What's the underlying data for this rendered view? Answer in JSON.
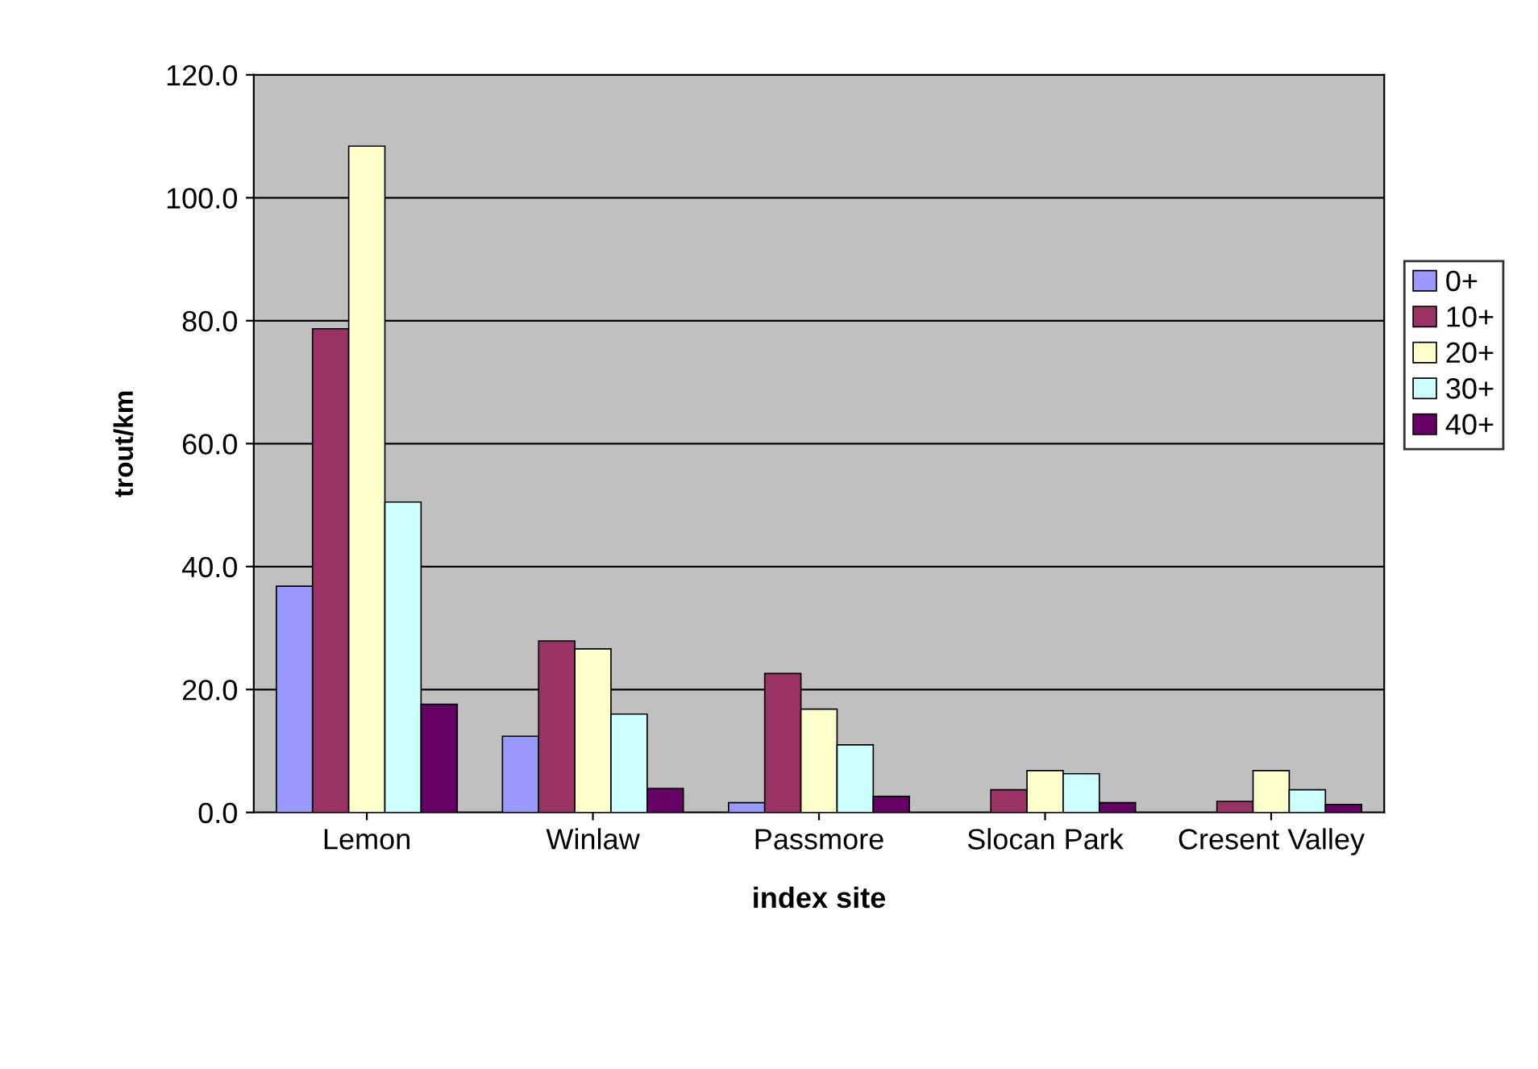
{
  "chart_data": {
    "type": "bar",
    "xlabel": "index site",
    "ylabel": "trout/km",
    "categories": [
      "Lemon",
      "Winlaw",
      "Passmore",
      "Slocan Park",
      "Cresent Valley"
    ],
    "series": [
      {
        "name": "0+",
        "color": "#9999ff",
        "values": [
          36.8,
          12.4,
          1.6,
          null,
          null
        ]
      },
      {
        "name": "10+",
        "color": "#993366",
        "values": [
          78.7,
          27.9,
          22.6,
          3.7,
          1.8
        ]
      },
      {
        "name": "20+",
        "color": "#ffffcc",
        "values": [
          108.4,
          26.6,
          16.8,
          6.8,
          6.8
        ]
      },
      {
        "name": "30+",
        "color": "#ccffff",
        "values": [
          50.5,
          16,
          11,
          6.3,
          3.7
        ]
      },
      {
        "name": "40+",
        "color": "#660066",
        "values": [
          17.6,
          3.9,
          2.6,
          1.6,
          1.3
        ]
      }
    ],
    "ylim": [
      0,
      120
    ],
    "yticks": [
      {
        "value": 0,
        "label": "0.0"
      },
      {
        "value": 20,
        "label": "20.0"
      },
      {
        "value": 40,
        "label": "40.0"
      },
      {
        "value": 60,
        "label": "60.0"
      },
      {
        "value": 80,
        "label": "80.0"
      },
      {
        "value": 100,
        "label": "100.0"
      },
      {
        "value": 120,
        "label": "120.0"
      }
    ],
    "grid": "y",
    "legend": "right"
  }
}
